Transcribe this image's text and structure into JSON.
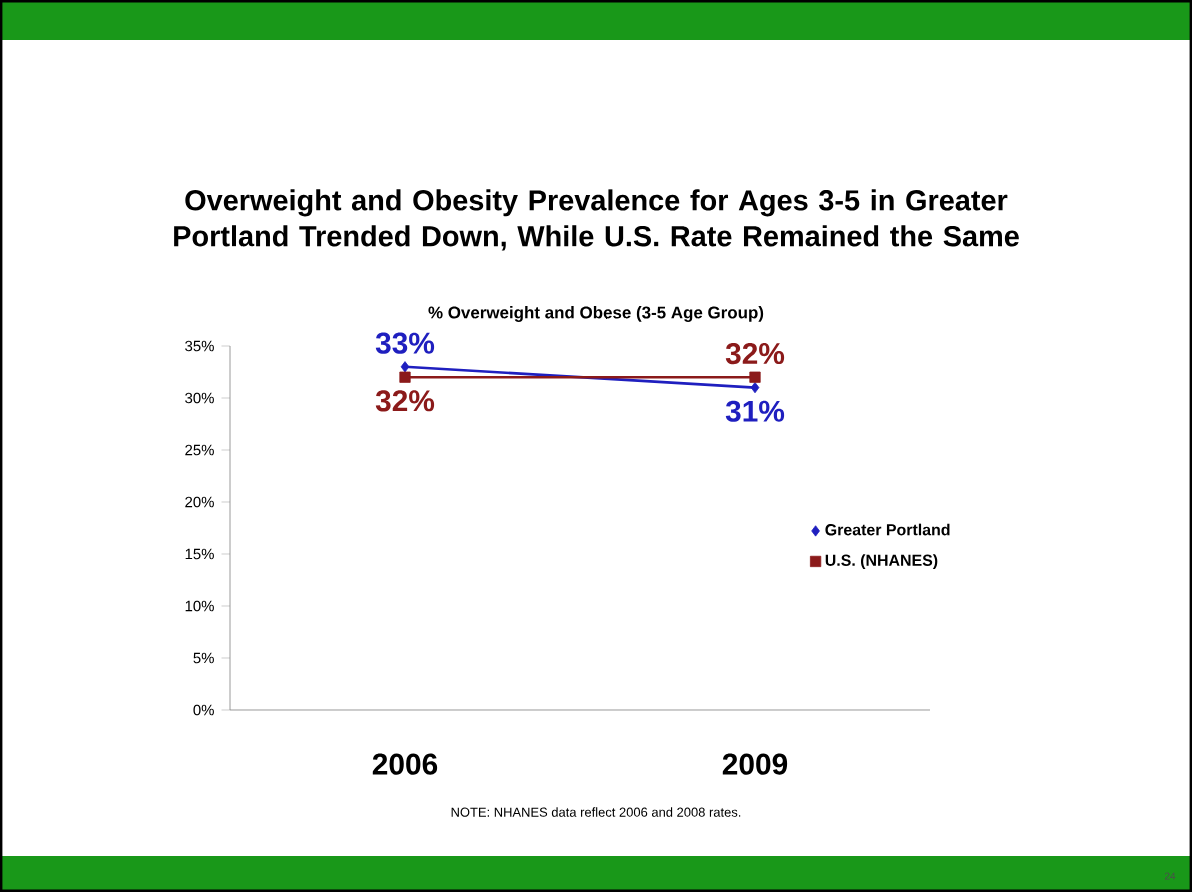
{
  "chart_data": {
    "type": "line",
    "title": "Overweight and Obesity Prevalence for Ages 3-5 in Greater Portland Trended Down, While U.S. Rate Remained the Same",
    "subtitle": "% Overweight and Obese (3-5 Age Group)",
    "categories": [
      "2006",
      "2009"
    ],
    "series": [
      {
        "name": "Greater Portland",
        "color": "#1f1fbf",
        "marker": "diamond",
        "values": [
          33,
          31
        ],
        "value_labels": [
          "33%",
          "31%"
        ]
      },
      {
        "name": "U.S. (NHANES)",
        "color": "#8b1a1a",
        "marker": "square",
        "values": [
          32,
          32
        ],
        "value_labels": [
          "32%",
          "32%"
        ]
      }
    ],
    "ylim": [
      0,
      35
    ],
    "yticks": [
      {
        "value": 0,
        "label": "0%"
      },
      {
        "value": 5,
        "label": "5%"
      },
      {
        "value": 10,
        "label": "10%"
      },
      {
        "value": 15,
        "label": "15%"
      },
      {
        "value": 20,
        "label": "20%"
      },
      {
        "value": 25,
        "label": "25%"
      },
      {
        "value": 30,
        "label": "30%"
      },
      {
        "value": 35,
        "label": "35%"
      }
    ],
    "grid": false,
    "legend": "right",
    "annotations": [
      "NOTE: NHANES data reflect 2006 and 2008 rates.",
      "24"
    ]
  }
}
